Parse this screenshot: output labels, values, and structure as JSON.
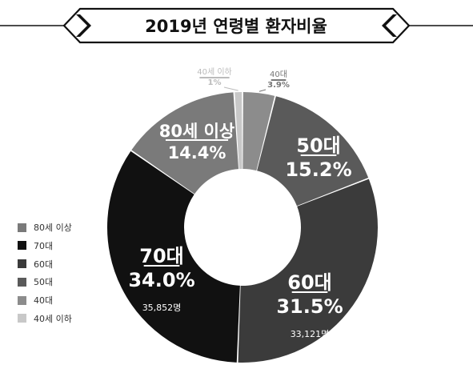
{
  "chart_data": {
    "type": "pie",
    "title": "2019년 연령별 환자비율",
    "donut": true,
    "slices": [
      {
        "label": "40대",
        "percent": 3.9,
        "percent_label": "3.9%",
        "count_label": "",
        "color": "#8c8c8c"
      },
      {
        "label": "50대",
        "percent": 15.2,
        "percent_label": "15.2%",
        "count_label": "",
        "color": "#5a5a5a"
      },
      {
        "label": "60대",
        "percent": 31.5,
        "percent_label": "31.5%",
        "count_label": "33,121명",
        "color": "#3b3b3b"
      },
      {
        "label": "70대",
        "percent": 34.0,
        "percent_label": "34.0%",
        "count_label": "35,852명",
        "color": "#111111"
      },
      {
        "label": "80세 이상",
        "percent": 14.4,
        "percent_label": "14.4%",
        "count_label": "",
        "color": "#7a7a7a"
      },
      {
        "label": "40세 이하",
        "percent": 1.0,
        "percent_label": "1%",
        "count_label": "",
        "color": "#c8c8c8"
      }
    ],
    "legend": [
      {
        "label": "80세 이상",
        "color": "#7a7a7a"
      },
      {
        "label": "70대",
        "color": "#111111"
      },
      {
        "label": "60대",
        "color": "#3b3b3b"
      },
      {
        "label": "50대",
        "color": "#5a5a5a"
      },
      {
        "label": "40대",
        "color": "#8c8c8c"
      },
      {
        "label": "40세 이하",
        "color": "#c8c8c8"
      }
    ],
    "legend_position": "left"
  }
}
